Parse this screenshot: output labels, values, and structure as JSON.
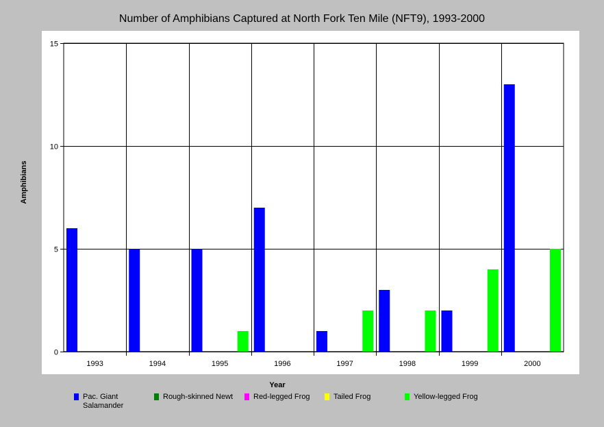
{
  "chart_data": {
    "type": "bar",
    "title": "Number of Amphibians Captured at North Fork Ten Mile (NFT9), 1993-2000",
    "xlabel": "Year",
    "ylabel": "Amphibians",
    "ylim": [
      0,
      15
    ],
    "yticks": [
      0,
      5,
      10,
      15
    ],
    "grid": true,
    "legend_position": "bottom",
    "categories": [
      "1993",
      "1994",
      "1995",
      "1996",
      "1997",
      "1998",
      "1999",
      "2000"
    ],
    "series": [
      {
        "name": "Pac. Giant Salamander",
        "color": "#0000ff",
        "values": [
          6,
          5,
          5,
          7,
          1,
          3,
          2,
          13
        ]
      },
      {
        "name": "Rough-skinned Newt",
        "color": "#008000",
        "values": [
          0,
          0,
          0,
          0,
          0,
          0,
          0,
          0
        ]
      },
      {
        "name": "Red-legged Frog",
        "color": "#ff00ff",
        "values": [
          0,
          0,
          0,
          0,
          0,
          0,
          0,
          0
        ]
      },
      {
        "name": "Tailed Frog",
        "color": "#ffff00",
        "values": [
          0,
          0,
          0,
          0,
          0,
          0,
          0,
          0
        ]
      },
      {
        "name": "Yellow-legged Frog",
        "color": "#00ff00",
        "values": [
          0,
          0,
          1,
          0,
          2,
          2,
          4,
          5
        ]
      }
    ]
  }
}
